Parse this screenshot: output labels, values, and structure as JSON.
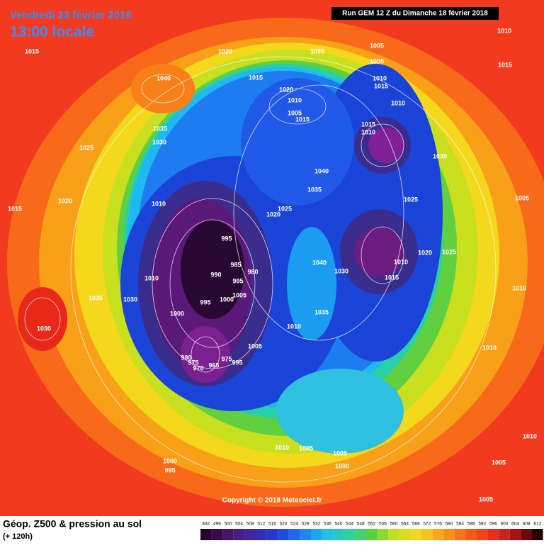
{
  "header": {
    "title": "Vendredi 23 février 2018",
    "subtitle": "13:00 locale",
    "run_info": "Run GEM 12 Z du Dimanche 18 février 2018"
  },
  "copyright": "Copyright © 2018 Meteociel.fr",
  "footer": {
    "title": "Géop. Z500 & pression au sol",
    "subtitle": "(+ 120h)"
  },
  "legend": {
    "labels": [
      492,
      496,
      500,
      504,
      508,
      512,
      516,
      520,
      524,
      528,
      532,
      536,
      540,
      544,
      548,
      552,
      556,
      560,
      564,
      568,
      572,
      576,
      580,
      584,
      588,
      592,
      596,
      600,
      604,
      608,
      612
    ]
  },
  "pressure_labels": [
    "1015",
    "1020",
    "1030",
    "1005",
    "1005",
    "1010",
    "1015",
    "1040",
    "1015",
    "1010",
    "1015",
    "1020",
    "1010",
    "1005",
    "1015",
    "1010",
    "1015",
    "1010",
    "1035",
    "1030",
    "1025",
    "1030",
    "1040",
    "1035",
    "1005",
    "1020",
    "1010",
    "1025",
    "1025",
    "1015",
    "1020",
    "995",
    "1020",
    "1025",
    "985",
    "980",
    "1040",
    "1010",
    "990",
    "1030",
    "995",
    "1015",
    "1010",
    "1035",
    "1030",
    "995",
    "1000",
    "1005",
    "1010",
    "1000",
    "1035",
    "1030",
    "1010",
    "1005",
    "1010",
    "980",
    "975",
    "970",
    "965",
    "975",
    "995",
    "1010",
    "1005",
    "1005",
    "1000",
    "1010",
    "1005",
    "1000",
    "995",
    "1005"
  ]
}
